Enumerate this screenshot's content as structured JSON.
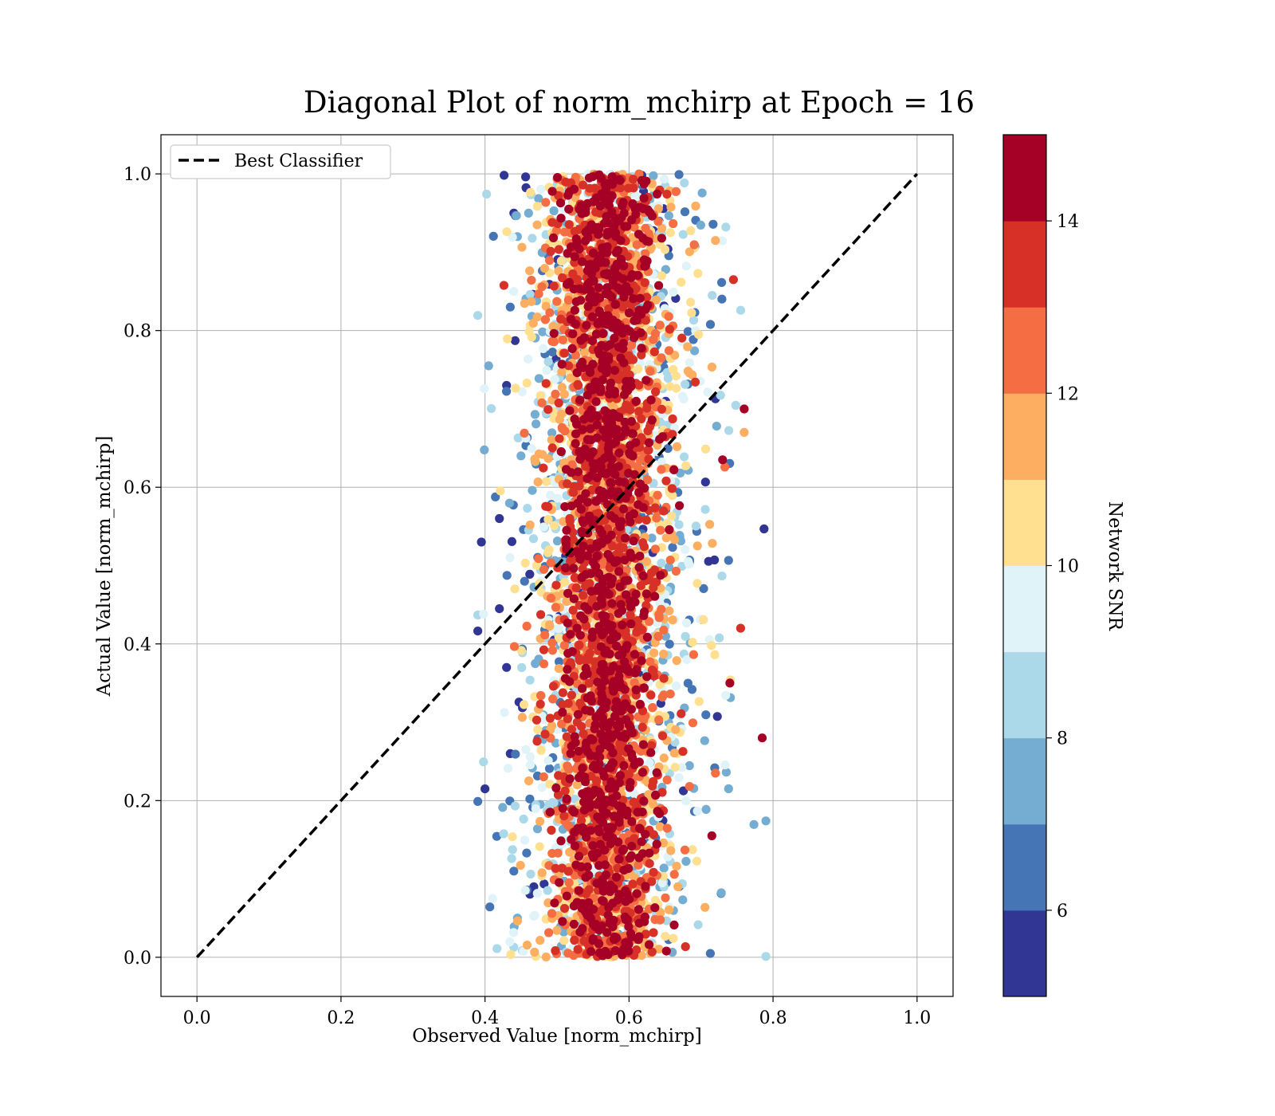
{
  "chart_data": {
    "type": "scatter",
    "title": "Diagonal Plot of norm_mchirp at Epoch = 16",
    "xlabel": "Observed Value [norm_mchirp]",
    "ylabel": "Actual Value [norm_mchirp]",
    "xlim": [
      -0.05,
      1.05
    ],
    "ylim": [
      -0.05,
      1.05
    ],
    "xticks": [
      "0.0",
      "0.2",
      "0.4",
      "0.6",
      "0.8",
      "1.0"
    ],
    "yticks": [
      "0.0",
      "0.2",
      "0.4",
      "0.6",
      "0.8",
      "1.0"
    ],
    "grid": true,
    "legend": {
      "placement": "upper-left",
      "entries": [
        {
          "label": "Best Classifier",
          "style": "dashed",
          "color": "#000000"
        }
      ]
    },
    "reference_line": {
      "name": "Best Classifier",
      "x": [
        0.0,
        1.0
      ],
      "y": [
        0.0,
        1.0
      ]
    },
    "colorbar": {
      "label": "Network SNR",
      "range": [
        5,
        15
      ],
      "ticks": [
        "6",
        "8",
        "10",
        "12",
        "14"
      ],
      "colors": [
        "#313695",
        "#4575b4",
        "#74add1",
        "#abd9e9",
        "#e0f3f8",
        "#fee090",
        "#fdae61",
        "#f46d43",
        "#d73027",
        "#a50026"
      ]
    },
    "point_cloud": {
      "observed_center": 0.57,
      "observed_spread": 0.05,
      "observed_range": [
        0.39,
        0.79
      ],
      "actual_range": [
        0.0,
        1.0
      ],
      "note_colors": "high SNR points concentrated near observed 0.57, low SNR points spread wider"
    },
    "points": [
      [
        0.395,
        0.53,
        5
      ],
      [
        0.405,
        0.755,
        7
      ],
      [
        0.4,
        0.215,
        5
      ],
      [
        0.42,
        0.445,
        5
      ],
      [
        0.43,
        0.73,
        5
      ],
      [
        0.435,
        0.83,
        6
      ],
      [
        0.44,
        0.95,
        5
      ],
      [
        0.445,
        0.92,
        7
      ],
      [
        0.42,
        0.56,
        5
      ],
      [
        0.43,
        0.37,
        5
      ],
      [
        0.435,
        0.26,
        5
      ],
      [
        0.44,
        0.11,
        6
      ],
      [
        0.445,
        0.05,
        7
      ],
      [
        0.45,
        0.64,
        7
      ],
      [
        0.455,
        0.48,
        6
      ],
      [
        0.715,
        0.155,
        15
      ],
      [
        0.76,
        0.7,
        15
      ],
      [
        0.785,
        0.28,
        14
      ],
      [
        0.745,
        0.865,
        13
      ],
      [
        0.755,
        0.42,
        13
      ],
      [
        0.72,
        0.915,
        11
      ],
      [
        0.76,
        0.67,
        11
      ],
      [
        0.73,
        0.635,
        14
      ],
      [
        0.74,
        0.35,
        14
      ],
      [
        0.72,
        0.235,
        12
      ]
    ]
  }
}
